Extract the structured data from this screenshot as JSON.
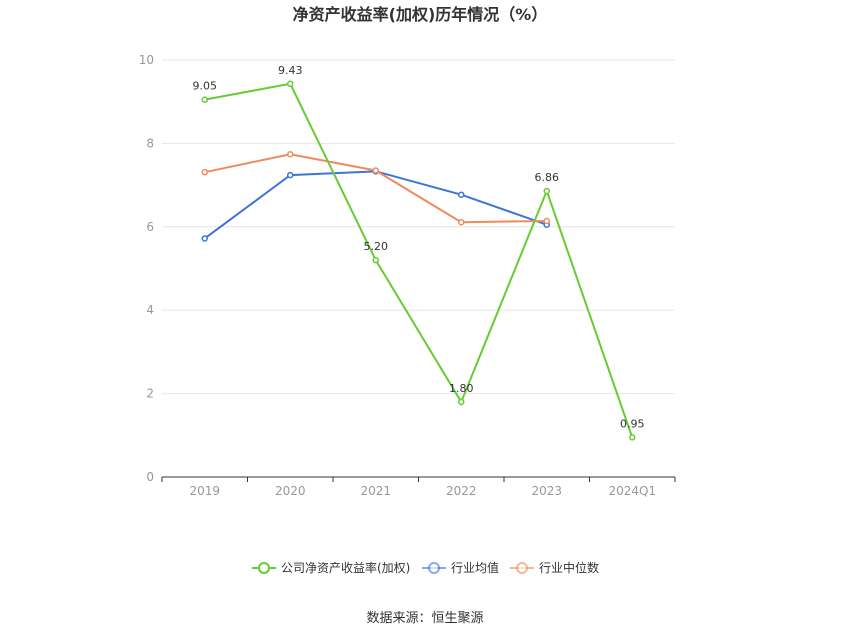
{
  "chart_data": {
    "type": "line",
    "title": "净资产收益率(加权)历年情况（%）",
    "categories": [
      "2019",
      "2020",
      "2021",
      "2022",
      "2023",
      "2024Q1"
    ],
    "ylim": [
      0,
      10
    ],
    "yticks": [
      "0",
      "2",
      "4",
      "6",
      "8",
      "10"
    ],
    "grid": true,
    "legend_position": "bottom",
    "series": [
      {
        "name": "公司净资产收益率(加权)",
        "color": "#66cc33",
        "values": [
          9.05,
          9.43,
          5.2,
          1.8,
          6.86,
          0.95
        ],
        "labels": [
          "9.05",
          "9.43",
          "5.20",
          "1.80",
          "6.86",
          "0.95"
        ]
      },
      {
        "name": "行业均值",
        "color": "#3d74d9",
        "values": [
          5.72,
          7.24,
          7.33,
          6.77,
          6.05,
          null
        ]
      },
      {
        "name": "行业中位数",
        "color": "#f08a5d",
        "values": [
          7.31,
          7.74,
          7.35,
          6.11,
          6.14,
          null
        ]
      }
    ],
    "source": "数据来源：恒生聚源"
  }
}
